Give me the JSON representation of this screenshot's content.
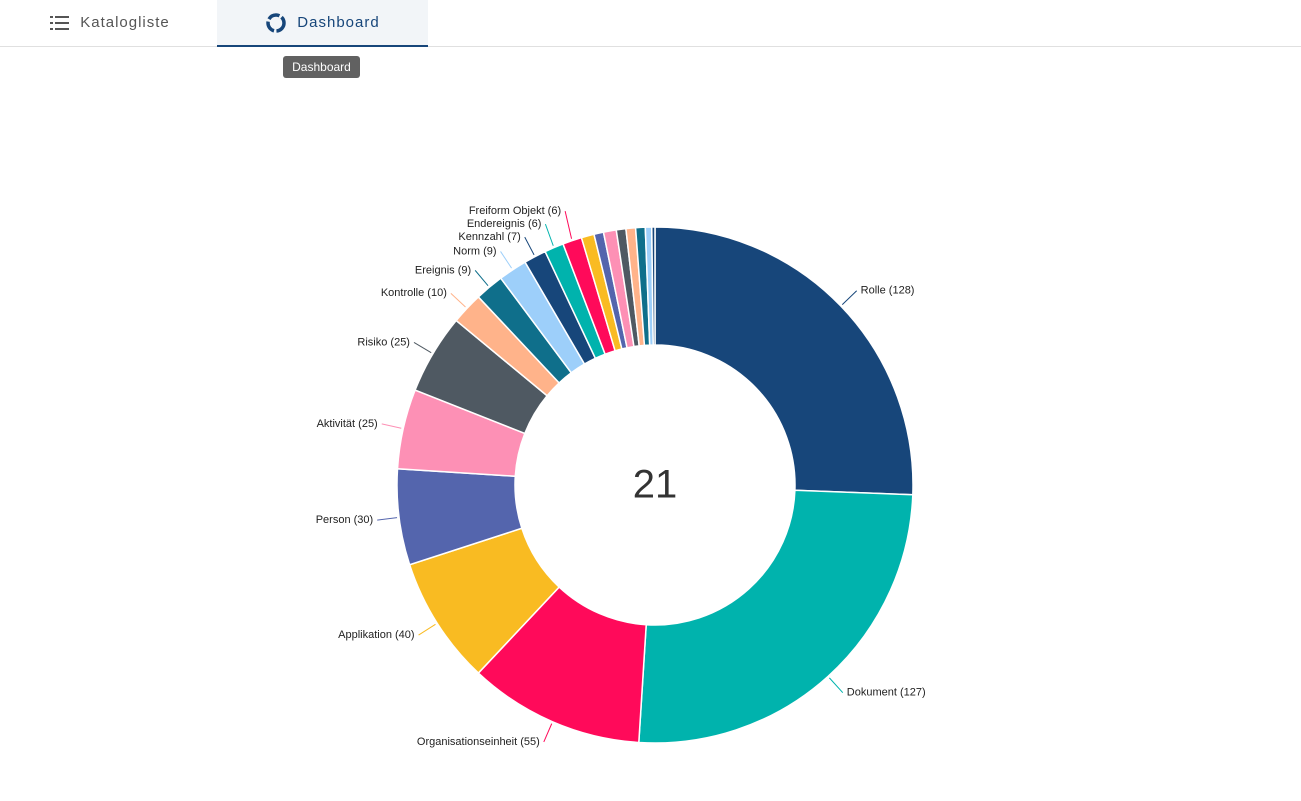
{
  "tabs": [
    {
      "label": "Katalogliste"
    },
    {
      "label": "Dashboard"
    }
  ],
  "tooltip": "Dashboard",
  "chart_data": {
    "type": "donut",
    "center_text": "21",
    "categories": [
      "Rolle (128)",
      "Dokument (127)",
      "Organisationseinheit (55)",
      "Applikation (40)",
      "Person (30)",
      "Aktivität (25)",
      "Risiko (25)",
      "Kontrolle (10)",
      "Ereignis (9)",
      "Norm (9)",
      "Kennzahl (7)",
      "Endereignis (6)",
      "Freiform Objekt (6)",
      null,
      null,
      null,
      null,
      null,
      null,
      null,
      null
    ],
    "values": [
      128,
      127,
      55,
      40,
      30,
      25,
      25,
      10,
      9,
      9,
      7,
      6,
      6,
      4,
      3,
      4,
      3,
      3,
      3,
      2,
      1
    ],
    "colors": [
      "#17467a",
      "#00b3ad",
      "#ff0a5a",
      "#f9bb22",
      "#5465ad",
      "#fd90b5",
      "#4f5962",
      "#ffb38a",
      "#0f6f8b",
      "#9dcffa",
      "#17467a",
      "#00b3ad",
      "#ff0a5a",
      "#f9bb22",
      "#5465ad",
      "#fd90b5",
      "#4f5962",
      "#ffb38a",
      "#0f6f8b",
      "#9dcffa",
      "#17467a"
    ]
  }
}
